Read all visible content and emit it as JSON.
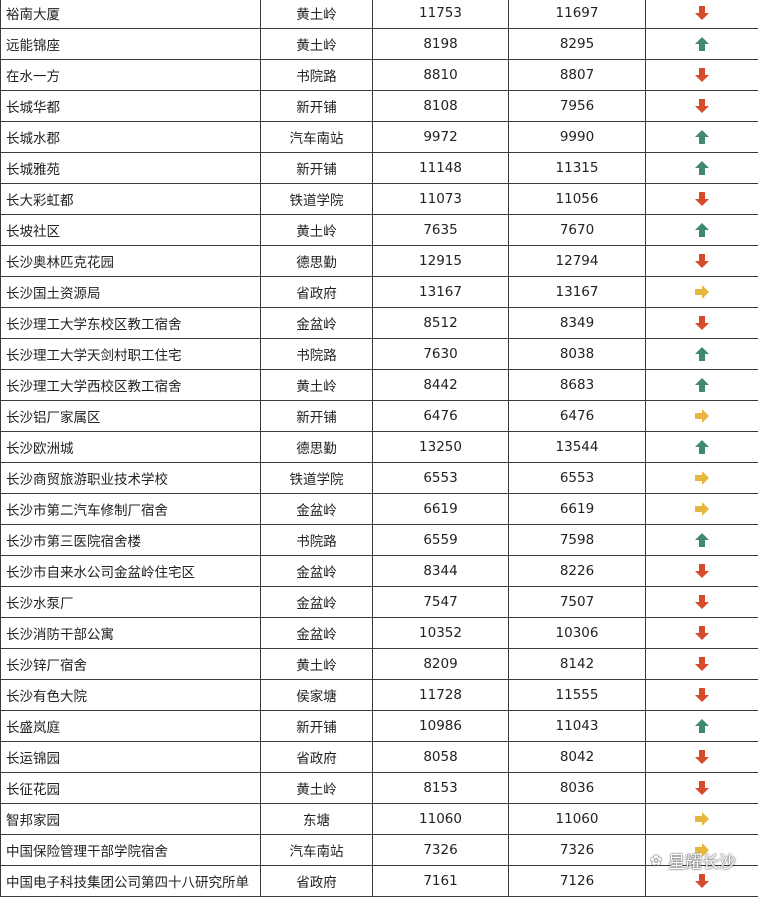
{
  "colors": {
    "down": "#d84a2c",
    "up": "#3f8a6c",
    "flat": "#e6b63e"
  },
  "rows": [
    {
      "name": "裕南大厦",
      "area": "黄土岭",
      "p1": "11753",
      "p2": "11697",
      "trend": "down"
    },
    {
      "name": "远能锦座",
      "area": "黄土岭",
      "p1": "8198",
      "p2": "8295",
      "trend": "up"
    },
    {
      "name": "在水一方",
      "area": "书院路",
      "p1": "8810",
      "p2": "8807",
      "trend": "down"
    },
    {
      "name": "长城华都",
      "area": "新开铺",
      "p1": "8108",
      "p2": "7956",
      "trend": "down"
    },
    {
      "name": "长城水郡",
      "area": "汽车南站",
      "p1": "9972",
      "p2": "9990",
      "trend": "up"
    },
    {
      "name": "长城雅苑",
      "area": "新开铺",
      "p1": "11148",
      "p2": "11315",
      "trend": "up"
    },
    {
      "name": "长大彩虹都",
      "area": "铁道学院",
      "p1": "11073",
      "p2": "11056",
      "trend": "down"
    },
    {
      "name": "长坡社区",
      "area": "黄土岭",
      "p1": "7635",
      "p2": "7670",
      "trend": "up"
    },
    {
      "name": "长沙奥林匹克花园",
      "area": "德思勤",
      "p1": "12915",
      "p2": "12794",
      "trend": "down"
    },
    {
      "name": "长沙国土资源局",
      "area": "省政府",
      "p1": "13167",
      "p2": "13167",
      "trend": "flat"
    },
    {
      "name": "长沙理工大学东校区教工宿舍",
      "area": "金盆岭",
      "p1": "8512",
      "p2": "8349",
      "trend": "down"
    },
    {
      "name": "长沙理工大学天剑村职工住宅",
      "area": "书院路",
      "p1": "7630",
      "p2": "8038",
      "trend": "up"
    },
    {
      "name": "长沙理工大学西校区教工宿舍",
      "area": "黄土岭",
      "p1": "8442",
      "p2": "8683",
      "trend": "up"
    },
    {
      "name": "长沙铝厂家属区",
      "area": "新开铺",
      "p1": "6476",
      "p2": "6476",
      "trend": "flat"
    },
    {
      "name": "长沙欧洲城",
      "area": "德思勤",
      "p1": "13250",
      "p2": "13544",
      "trend": "up"
    },
    {
      "name": "长沙商贸旅游职业技术学校",
      "area": "铁道学院",
      "p1": "6553",
      "p2": "6553",
      "trend": "flat"
    },
    {
      "name": "长沙市第二汽车修制厂宿舍",
      "area": "金盆岭",
      "p1": "6619",
      "p2": "6619",
      "trend": "flat"
    },
    {
      "name": "长沙市第三医院宿舍楼",
      "area": "书院路",
      "p1": "6559",
      "p2": "7598",
      "trend": "up"
    },
    {
      "name": "长沙市自来水公司金盆岭住宅区",
      "area": "金盆岭",
      "p1": "8344",
      "p2": "8226",
      "trend": "down"
    },
    {
      "name": "长沙水泵厂",
      "area": "金盆岭",
      "p1": "7547",
      "p2": "7507",
      "trend": "down"
    },
    {
      "name": "长沙消防干部公寓",
      "area": "金盆岭",
      "p1": "10352",
      "p2": "10306",
      "trend": "down"
    },
    {
      "name": "长沙锌厂宿舍",
      "area": "黄土岭",
      "p1": "8209",
      "p2": "8142",
      "trend": "down"
    },
    {
      "name": "长沙有色大院",
      "area": "侯家塘",
      "p1": "11728",
      "p2": "11555",
      "trend": "down"
    },
    {
      "name": "长盛岚庭",
      "area": "新开铺",
      "p1": "10986",
      "p2": "11043",
      "trend": "up"
    },
    {
      "name": "长运锦园",
      "area": "省政府",
      "p1": "8058",
      "p2": "8042",
      "trend": "down"
    },
    {
      "name": "长征花园",
      "area": "黄土岭",
      "p1": "8153",
      "p2": "8036",
      "trend": "down"
    },
    {
      "name": "智邦家园",
      "area": "东塘",
      "p1": "11060",
      "p2": "11060",
      "trend": "flat"
    },
    {
      "name": "中国保险管理干部学院宿舍",
      "area": "汽车南站",
      "p1": "7326",
      "p2": "7326",
      "trend": "flat"
    },
    {
      "name": "中国电子科技集团公司第四十八研究所单",
      "area": "省政府",
      "p1": "7161",
      "p2": "7126",
      "trend": "down"
    }
  ],
  "watermark": "星耀长沙"
}
